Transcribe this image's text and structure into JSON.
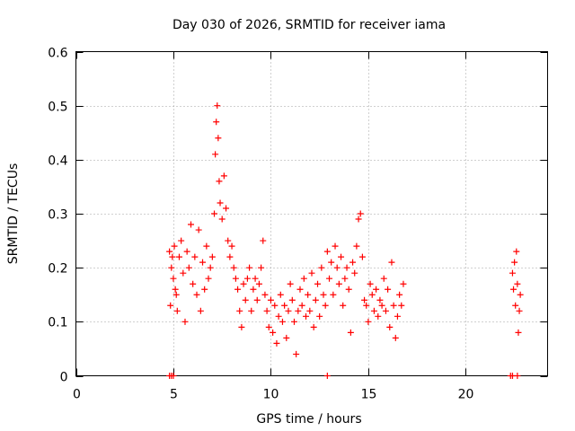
{
  "chart_data": {
    "type": "scatter",
    "title": "Day 030 of 2026, SRMTID for receiver iama",
    "xlabel": "GPS time / hours",
    "ylabel": "SRMTID / TECUs",
    "xlim": [
      0,
      24.2
    ],
    "ylim": [
      0,
      0.6
    ],
    "xticks": [
      0,
      5,
      10,
      15,
      20
    ],
    "yticks": [
      0,
      0.1,
      0.2,
      0.3,
      0.4,
      0.5,
      0.6
    ],
    "grid": true,
    "marker": "+",
    "marker_color": "#ff0000",
    "series": [
      {
        "name": "SRMTID",
        "x": [
          4.8,
          4.85,
          4.9,
          4.95,
          5.0,
          5.05,
          5.1,
          5.15,
          5.2,
          5.3,
          5.4,
          5.5,
          5.6,
          5.7,
          5.8,
          5.9,
          6.0,
          6.1,
          6.2,
          6.3,
          6.4,
          6.5,
          6.6,
          6.7,
          6.8,
          6.9,
          7.0,
          7.1,
          7.15,
          7.2,
          7.25,
          7.3,
          7.35,
          7.4,
          7.5,
          7.6,
          7.7,
          7.8,
          7.9,
          8.0,
          8.1,
          8.2,
          8.3,
          8.4,
          8.5,
          8.6,
          8.7,
          8.8,
          8.9,
          9.0,
          9.1,
          9.2,
          9.3,
          9.4,
          9.5,
          9.6,
          9.7,
          9.8,
          9.9,
          10.0,
          10.1,
          10.2,
          10.3,
          10.4,
          10.5,
          10.6,
          10.7,
          10.8,
          10.9,
          11.0,
          11.1,
          11.2,
          11.3,
          11.4,
          11.5,
          11.6,
          11.7,
          11.8,
          11.9,
          12.0,
          12.1,
          12.2,
          12.3,
          12.4,
          12.5,
          12.6,
          12.7,
          12.8,
          12.9,
          13.0,
          13.1,
          13.2,
          13.3,
          13.4,
          13.5,
          13.6,
          13.7,
          13.8,
          13.9,
          14.0,
          14.1,
          14.2,
          14.3,
          14.4,
          14.5,
          14.6,
          14.7,
          14.8,
          14.9,
          15.0,
          15.1,
          15.2,
          15.3,
          15.4,
          15.5,
          15.6,
          15.7,
          15.8,
          15.9,
          16.0,
          16.1,
          16.2,
          16.3,
          16.4,
          16.5,
          16.6,
          16.7,
          16.8,
          22.4,
          22.45,
          22.5,
          22.55,
          22.6,
          22.65,
          22.7,
          22.75,
          22.8,
          4.8,
          4.9,
          5.0,
          12.9,
          22.3,
          22.4,
          22.65
        ],
        "y": [
          0.23,
          0.13,
          0.2,
          0.22,
          0.18,
          0.24,
          0.16,
          0.15,
          0.12,
          0.22,
          0.25,
          0.19,
          0.1,
          0.23,
          0.2,
          0.28,
          0.17,
          0.22,
          0.15,
          0.27,
          0.12,
          0.21,
          0.16,
          0.24,
          0.18,
          0.2,
          0.22,
          0.3,
          0.41,
          0.47,
          0.5,
          0.44,
          0.36,
          0.32,
          0.29,
          0.37,
          0.31,
          0.25,
          0.22,
          0.24,
          0.2,
          0.18,
          0.16,
          0.12,
          0.09,
          0.17,
          0.14,
          0.18,
          0.2,
          0.12,
          0.16,
          0.18,
          0.14,
          0.17,
          0.2,
          0.25,
          0.15,
          0.12,
          0.09,
          0.14,
          0.08,
          0.13,
          0.06,
          0.11,
          0.15,
          0.1,
          0.13,
          0.07,
          0.12,
          0.17,
          0.14,
          0.1,
          0.04,
          0.12,
          0.16,
          0.13,
          0.18,
          0.11,
          0.15,
          0.12,
          0.19,
          0.09,
          0.14,
          0.17,
          0.11,
          0.2,
          0.15,
          0.13,
          0.23,
          0.18,
          0.21,
          0.15,
          0.24,
          0.2,
          0.17,
          0.22,
          0.13,
          0.18,
          0.2,
          0.16,
          0.08,
          0.21,
          0.19,
          0.24,
          0.29,
          0.3,
          0.22,
          0.14,
          0.13,
          0.1,
          0.17,
          0.15,
          0.12,
          0.16,
          0.11,
          0.14,
          0.13,
          0.18,
          0.12,
          0.16,
          0.09,
          0.21,
          0.13,
          0.07,
          0.11,
          0.15,
          0.13,
          0.17,
          0.19,
          0.16,
          0.21,
          0.13,
          0.23,
          0.17,
          0.08,
          0.12,
          0.15,
          0,
          0,
          0,
          0,
          0,
          0,
          0
        ]
      }
    ]
  }
}
